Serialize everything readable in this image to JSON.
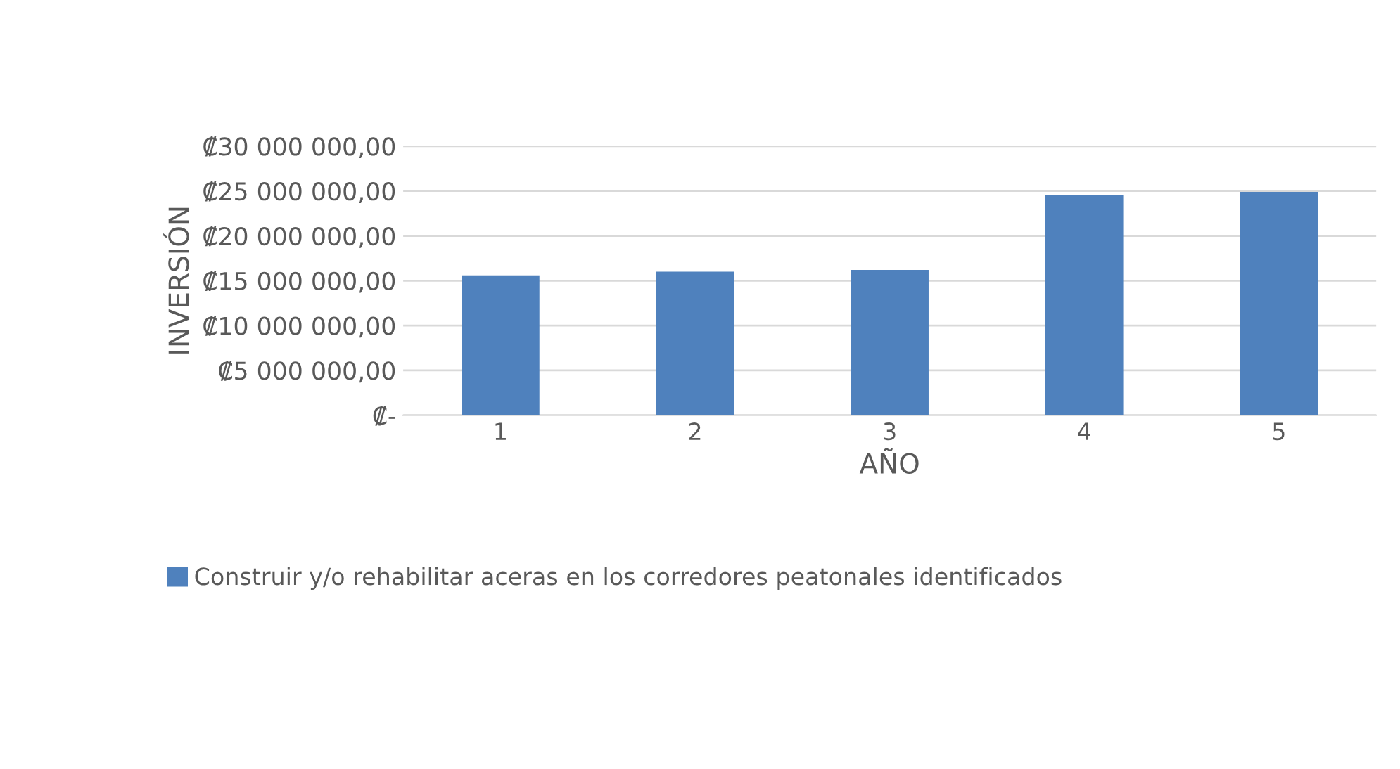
{
  "chart_data": {
    "type": "bar",
    "xlabel": "AÑO",
    "ylabel": "INVERSIÓN",
    "categories": [
      "1",
      "2",
      "3",
      "4",
      "5"
    ],
    "series": [
      {
        "name": "Construir y/o rehabilitar aceras en los corredores peatonales identificados",
        "color": "#4f81bd",
        "values": [
          15600000,
          16000000,
          16200000,
          24500000,
          24900000
        ]
      }
    ],
    "ylim": [
      0,
      30000000
    ],
    "yticks": [
      {
        "value": 0,
        "label": "₡-"
      },
      {
        "value": 5000000,
        "label": "₡5 000 000,00"
      },
      {
        "value": 10000000,
        "label": "₡10 000 000,00"
      },
      {
        "value": 15000000,
        "label": "₡15 000 000,00"
      },
      {
        "value": 20000000,
        "label": "₡20 000 000,00"
      },
      {
        "value": 25000000,
        "label": "₡25 000 000,00"
      },
      {
        "value": 30000000,
        "label": "₡30 000 000,00"
      }
    ],
    "grid": "y",
    "legend": "bottom"
  }
}
